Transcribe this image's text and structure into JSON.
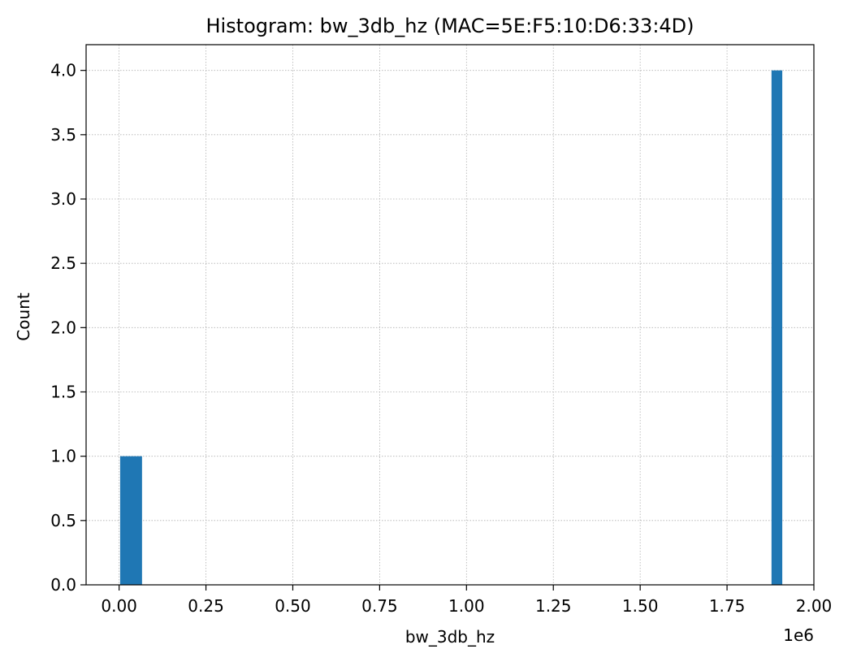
{
  "chart_data": {
    "type": "bar",
    "title": "Histogram: bw_3db_hz (MAC=5E:F5:10:D6:33:4D)",
    "xlabel": "bw_3db_hz",
    "ylabel": "Count",
    "x_offset_label": "1e6",
    "xlim": [
      -0.095,
      2.0
    ],
    "ylim": [
      0,
      4.2
    ],
    "x_scale_factor": 1000000,
    "x_ticks": [
      0.0,
      0.25,
      0.5,
      0.75,
      1.0,
      1.25,
      1.5,
      1.75,
      2.0
    ],
    "x_tick_labels": [
      "0.00",
      "0.25",
      "0.50",
      "0.75",
      "1.00",
      "1.25",
      "1.50",
      "1.75",
      "2.00"
    ],
    "y_ticks": [
      0.0,
      0.5,
      1.0,
      1.5,
      2.0,
      2.5,
      3.0,
      3.5,
      4.0
    ],
    "y_tick_labels": [
      "0.0",
      "0.5",
      "1.0",
      "1.5",
      "2.0",
      "2.5",
      "3.0",
      "3.5",
      "4.0"
    ],
    "grid": true,
    "bar_color": "#1f77b4",
    "bins": [
      {
        "x_start": 0.003,
        "x_end": 0.066,
        "count": 1
      },
      {
        "x_start": 1.878,
        "x_end": 1.909,
        "count": 4
      }
    ]
  }
}
